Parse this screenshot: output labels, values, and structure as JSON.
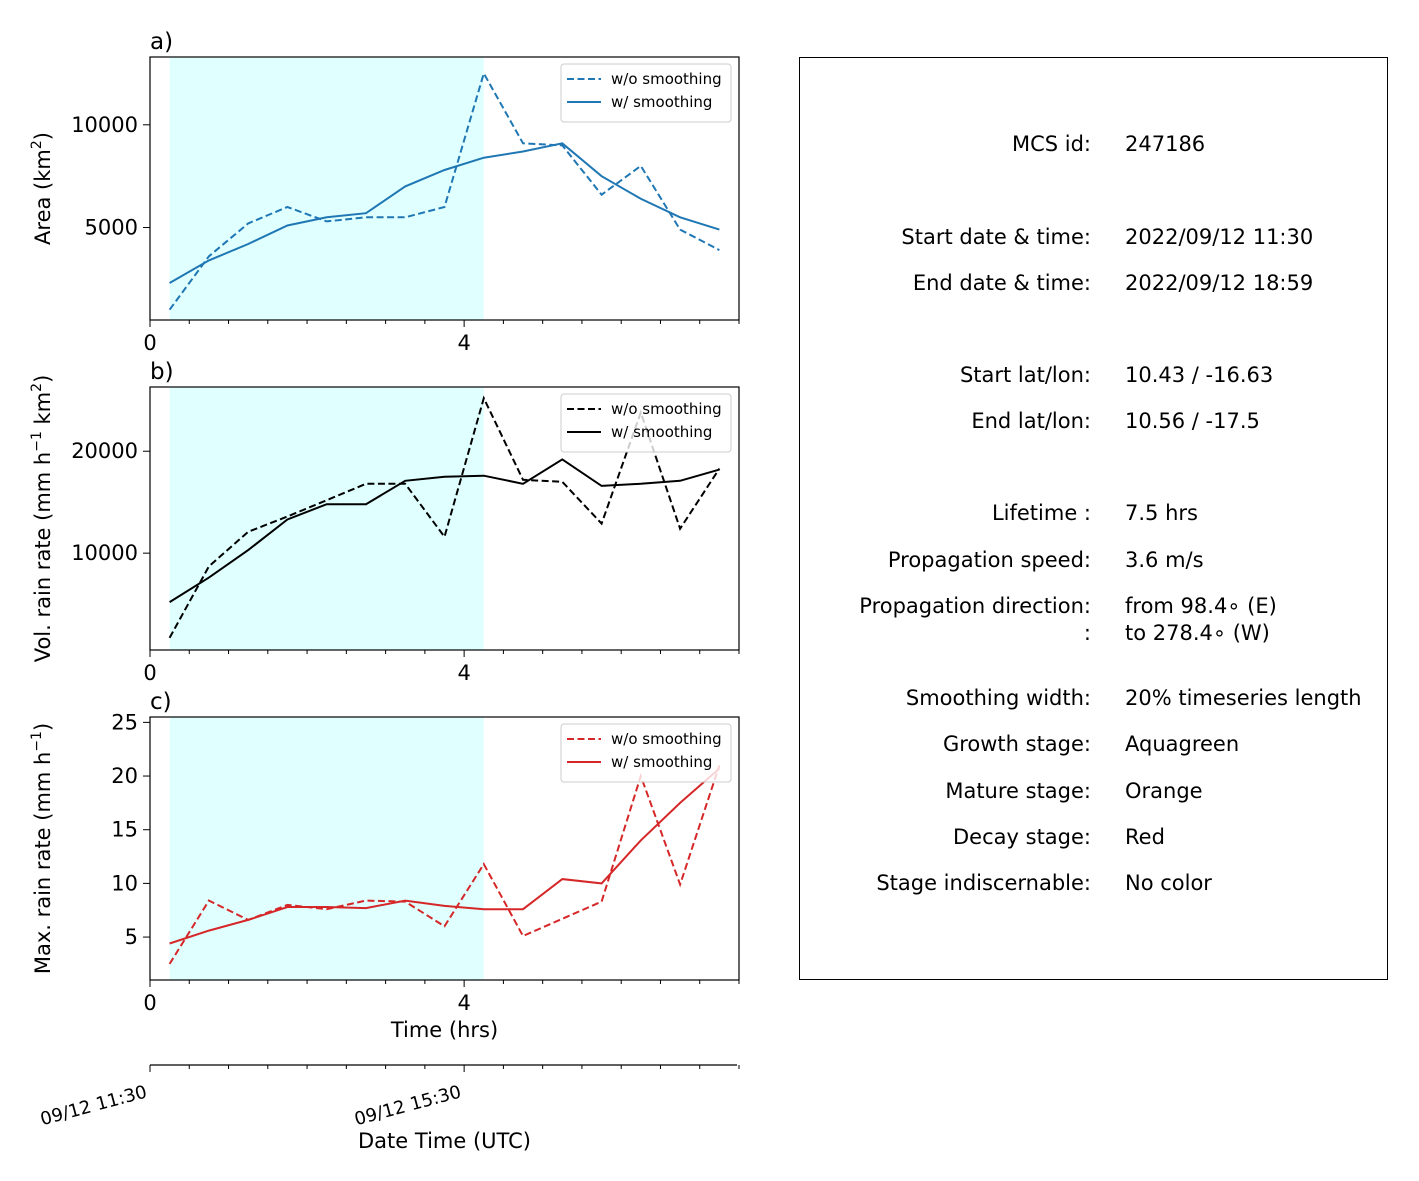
{
  "colors": {
    "area": "#1f77b4",
    "volrain": "#000000",
    "maxrain": "#d62728",
    "growth_shade": "#e0ffff"
  },
  "chart_data": [
    {
      "type": "line",
      "panel_label": "a)",
      "ylabel": "Area  (km",
      "ylabel_sup": "2",
      "ylabel_end": ")",
      "xlabel": "",
      "xlim": [
        0,
        7.5
      ],
      "ylim": [
        500,
        13300
      ],
      "xticks": [
        0,
        4
      ],
      "yticks": [
        5000,
        10000
      ],
      "legend_position": "upper right",
      "shaded_x": [
        0.25,
        4.25
      ],
      "color_key": "area",
      "x": [
        0.25,
        0.75,
        1.25,
        1.75,
        2.25,
        2.75,
        3.25,
        3.75,
        4.25,
        4.75,
        5.25,
        5.75,
        6.25,
        6.75,
        7.25
      ],
      "series": [
        {
          "name": "w/o smoothing",
          "dashed": true,
          "values": [
            1000,
            3600,
            5200,
            6000,
            5300,
            5500,
            5500,
            6000,
            12500,
            9100,
            9000,
            6600,
            8000,
            4900,
            3900
          ]
        },
        {
          "name": "w/ smoothing",
          "dashed": false,
          "values": [
            2300,
            3400,
            4200,
            5100,
            5500,
            5700,
            7000,
            7800,
            8400,
            8700,
            9100,
            7500,
            6400,
            5500,
            4900
          ]
        }
      ]
    },
    {
      "type": "line",
      "panel_label": "b)",
      "ylabel": "Vol. rain rate (mm h",
      "ylabel_sup": "−1",
      "ylabel_mid": " km",
      "ylabel_sup2": "2",
      "ylabel_end": ")",
      "xlabel": "",
      "xlim": [
        0,
        7.5
      ],
      "ylim": [
        500,
        26300
      ],
      "xticks": [
        0,
        4
      ],
      "yticks": [
        10000,
        20000
      ],
      "legend_position": "upper right",
      "shaded_x": [
        0.25,
        4.25
      ],
      "color_key": "volrain",
      "x": [
        0.25,
        0.75,
        1.25,
        1.75,
        2.25,
        2.75,
        3.25,
        3.75,
        4.25,
        4.75,
        5.25,
        5.75,
        6.25,
        6.75,
        7.25
      ],
      "series": [
        {
          "name": "w/o smoothing",
          "dashed": true,
          "values": [
            1700,
            8700,
            12100,
            13600,
            15200,
            16800,
            16800,
            11600,
            25200,
            17200,
            17000,
            12900,
            23800,
            12400,
            18300
          ]
        },
        {
          "name": "w/ smoothing",
          "dashed": false,
          "values": [
            5200,
            7600,
            10300,
            13300,
            14800,
            14800,
            17100,
            17500,
            17600,
            16800,
            19200,
            16600,
            16800,
            17100,
            18200
          ]
        }
      ]
    },
    {
      "type": "line",
      "panel_label": "c)",
      "ylabel": "Max. rain rate  (mm h",
      "ylabel_sup": "−1",
      "ylabel_end": ")",
      "xlabel": "Time (hrs)",
      "xlim": [
        0,
        7.5
      ],
      "ylim": [
        1,
        25.5
      ],
      "xticks": [
        0,
        4
      ],
      "yticks": [
        5,
        10,
        15,
        20,
        25
      ],
      "legend_position": "upper right",
      "shaded_x": [
        0.25,
        4.25
      ],
      "color_key": "maxrain",
      "x": [
        0.25,
        0.75,
        1.25,
        1.75,
        2.25,
        2.75,
        3.25,
        3.75,
        4.25,
        4.75,
        5.25,
        5.75,
        6.25,
        6.75,
        7.25
      ],
      "series": [
        {
          "name": "w/o smoothing",
          "dashed": true,
          "values": [
            2.5,
            8.4,
            6.6,
            8.0,
            7.6,
            8.4,
            8.3,
            6.0,
            11.8,
            5.1,
            6.7,
            8.3,
            20.0,
            9.9,
            21.0
          ]
        },
        {
          "name": "w/ smoothing",
          "dashed": false,
          "values": [
            4.4,
            5.6,
            6.6,
            7.8,
            7.8,
            7.7,
            8.4,
            7.9,
            7.6,
            7.6,
            10.4,
            10.0,
            14.0,
            17.5,
            20.7
          ]
        }
      ]
    }
  ],
  "datetime_axis": {
    "label": "Date Time (UTC)",
    "ticks": [
      {
        "x": 0,
        "label": "09/12 11:30"
      },
      {
        "x": 4,
        "label": "09/12 15:30"
      }
    ]
  },
  "info": {
    "rows": [
      {
        "key": "MCS id:",
        "value": "247186"
      },
      {
        "key": "Start date & time:",
        "value": "2022/09/12 11:30"
      },
      {
        "key": "End date & time:",
        "value": "2022/09/12 18:59"
      },
      {
        "key": "Start lat/lon:",
        "value": "10.43 / -16.63"
      },
      {
        "key": "End lat/lon:",
        "value": "10.56 / -17.5"
      },
      {
        "key": "Lifetime :",
        "value": "7.5 hrs"
      },
      {
        "key": "Propagation speed:",
        "value": "3.6 m/s"
      },
      {
        "key": "Propagation direction:",
        "value": "from  98.4∘ (E)"
      },
      {
        "key": ":",
        "value": "to   278.4∘ (W)"
      },
      {
        "key": "Smoothing width:",
        "value": "20% timeseries length"
      },
      {
        "key": "Growth stage:",
        "value": "Aquagreen"
      },
      {
        "key": "Mature stage:",
        "value": "Orange"
      },
      {
        "key": "Decay stage:",
        "value": "Red"
      },
      {
        "key": "Stage indiscernable:",
        "value": "No color"
      }
    ]
  }
}
